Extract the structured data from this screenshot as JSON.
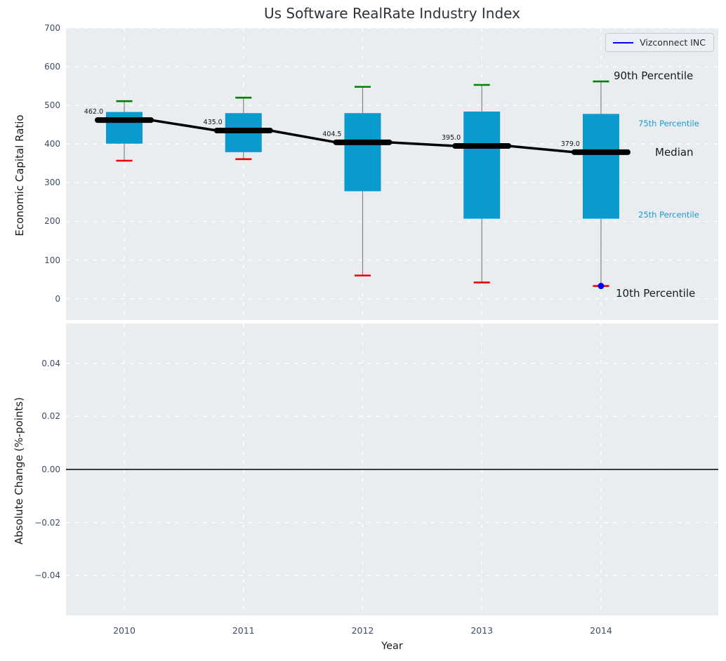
{
  "title": "Us Software RealRate Industry Index",
  "legend": {
    "label": "Vizconnect INC"
  },
  "colors": {
    "plot_bg": "#e9edf0",
    "grid": "#ffffff",
    "box_fill": "#0b9acd",
    "median_line": "#000000",
    "whisker": "#848484",
    "cap_high": "#008000",
    "cap_low": "#ee0000",
    "company": "#0000ee",
    "tick_text": "#3e4d66",
    "accent_text": "#189bd0",
    "zero_line": "#000000"
  },
  "chart_data": {
    "type": "bar",
    "subtype": "percentile-boxplot-timeseries",
    "title": "Us Software RealRate Industry Index",
    "xlabel": "Year",
    "x": [
      2010,
      2011,
      2012,
      2013,
      2014
    ],
    "xtick_labels": [
      "2010",
      "2011",
      "2012",
      "2013",
      "2014"
    ],
    "xlim": [
      2009.511,
      2014.984
    ],
    "grid": "on",
    "legend_position": "upper right",
    "top": {
      "ylabel": "Economic Capital Ratio",
      "ylim": [
        -55,
        700
      ],
      "ytick_values": [
        0,
        100,
        200,
        300,
        400,
        500,
        600,
        700
      ],
      "ytick_labels": [
        "0",
        "100",
        "200",
        "300",
        "400",
        "500",
        "600",
        "700"
      ],
      "series": [
        {
          "name": "90th Percentile",
          "values": [
            511,
            520,
            548,
            553,
            562
          ]
        },
        {
          "name": "75th Percentile",
          "values": [
            483,
            480,
            480,
            484,
            478
          ]
        },
        {
          "name": "Median",
          "values": [
            462.0,
            435.0,
            404.5,
            395.0,
            379.0
          ]
        },
        {
          "name": "25th Percentile",
          "values": [
            401,
            379,
            278,
            207,
            207
          ]
        },
        {
          "name": "10th Percentile",
          "values": [
            357,
            361,
            60,
            42,
            33
          ]
        }
      ],
      "median_annotations": [
        "462.0",
        "435.0",
        "404.5",
        "395.0",
        "379.0"
      ],
      "company_point": {
        "name": "Vizconnect INC",
        "x": 2014,
        "value": 33
      },
      "side_labels": [
        {
          "text": "90th Percentile",
          "style": "lg"
        },
        {
          "text": "75th Percentile",
          "style": "sm"
        },
        {
          "text": "Median",
          "style": "lg"
        },
        {
          "text": "25th Percentile",
          "style": "sm"
        },
        {
          "text": "10th Percentile",
          "style": "lg"
        }
      ]
    },
    "bottom": {
      "ylabel": "Absolute Change (%-points)",
      "ylim": [
        -0.055,
        0.055
      ],
      "ytick_values": [
        0.04,
        0.02,
        0.0,
        -0.02,
        -0.04
      ],
      "ytick_labels": [
        "0.04",
        "0.02",
        "0.00",
        "−0.02",
        "−0.04"
      ],
      "zero_line": true,
      "series": []
    }
  }
}
